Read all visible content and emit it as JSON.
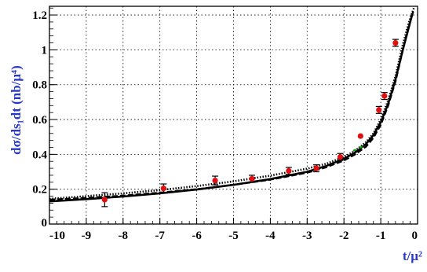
{
  "chart_data": {
    "type": "scatter",
    "title": "",
    "ylabel": "dσ/ds₁dt (nb/μ⁴)",
    "xlabel": "t/μ²",
    "xlim": [
      -10,
      0
    ],
    "ylim": [
      0,
      1.25
    ],
    "grid": true,
    "x_ticks": [
      "-10",
      "-9",
      "-8",
      "-7",
      "-6",
      "-5",
      "-4",
      "-3",
      "-2",
      "-1",
      "0"
    ],
    "y_ticks": [
      "0",
      "0.2",
      "0.4",
      "0.6",
      "0.8",
      "1",
      "1.2"
    ],
    "series": [
      {
        "style": "points",
        "color": "#e01010",
        "points": [
          {
            "x": -8.5,
            "y": 0.14,
            "err": 0.04
          },
          {
            "x": -6.9,
            "y": 0.205,
            "err": 0.025
          },
          {
            "x": -5.5,
            "y": 0.25,
            "err": 0.025
          },
          {
            "x": -4.5,
            "y": 0.26,
            "err": 0.02
          },
          {
            "x": -3.5,
            "y": 0.305,
            "err": 0.02
          },
          {
            "x": -2.75,
            "y": 0.32,
            "err": 0.02
          },
          {
            "x": -2.1,
            "y": 0.385,
            "err": 0.02
          },
          {
            "x": -1.55,
            "y": 0.505,
            "err": 0.0
          },
          {
            "x": -1.05,
            "y": 0.655,
            "err": 0.02
          },
          {
            "x": -0.9,
            "y": 0.735,
            "err": 0.02
          },
          {
            "x": -0.6,
            "y": 1.04,
            "err": 0.02
          }
        ]
      },
      {
        "style": "solid",
        "color": "#000000",
        "x": [
          -10,
          -9,
          -8,
          -7,
          -6,
          -5,
          -4,
          -3,
          -2.5,
          -2,
          -1.7,
          -1.4,
          -1.2,
          -1,
          -0.8,
          -0.6,
          -0.4,
          -0.25,
          -0.15
        ],
        "y": [
          0.13,
          0.143,
          0.158,
          0.176,
          0.198,
          0.225,
          0.258,
          0.3,
          0.332,
          0.375,
          0.41,
          0.46,
          0.51,
          0.585,
          0.69,
          0.83,
          1.0,
          1.12,
          1.2
        ]
      },
      {
        "style": "dashed",
        "color": "#000000",
        "x": [
          -10,
          -9,
          -8,
          -7,
          -6,
          -5,
          -4,
          -3,
          -2.5,
          -2,
          -1.7,
          -1.4,
          -1.2,
          -1,
          -0.8,
          -0.6,
          -0.4,
          -0.25,
          -0.12
        ],
        "y": [
          0.14,
          0.15,
          0.163,
          0.18,
          0.2,
          0.225,
          0.255,
          0.295,
          0.325,
          0.365,
          0.4,
          0.445,
          0.495,
          0.57,
          0.68,
          0.82,
          1.0,
          1.13,
          1.22
        ]
      },
      {
        "style": "dotted",
        "color": "#000000",
        "x": [
          -10,
          -9,
          -8,
          -7,
          -6,
          -5,
          -4,
          -3,
          -2.5,
          -2,
          -1.7,
          -1.4,
          -1.2,
          -1,
          -0.8,
          -0.6,
          -0.4,
          -0.25,
          -0.1
        ],
        "y": [
          0.145,
          0.16,
          0.176,
          0.195,
          0.218,
          0.245,
          0.278,
          0.318,
          0.345,
          0.385,
          0.42,
          0.47,
          0.52,
          0.6,
          0.71,
          0.85,
          1.03,
          1.15,
          1.24
        ]
      },
      {
        "style": "dash-dot",
        "color": "#1a9a1a",
        "x": [
          -1.75,
          -1.65,
          -1.55,
          -1.45
        ],
        "y": [
          0.42,
          0.43,
          0.44,
          0.45
        ]
      }
    ]
  }
}
